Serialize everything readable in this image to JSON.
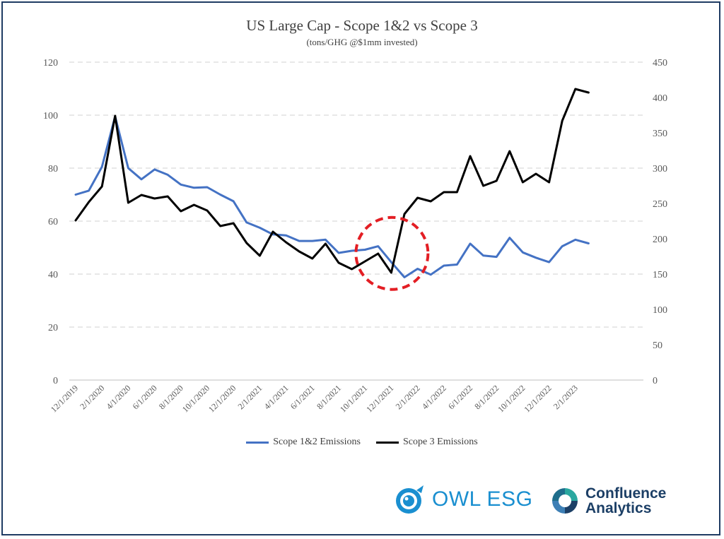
{
  "chart_data": {
    "type": "line",
    "title": "US Large Cap - Scope 1&2 vs Scope 3",
    "subtitle": "(tons/GHG @$1mm invested)",
    "x": [
      "12/1/2019",
      "1/1/2020",
      "2/1/2020",
      "3/1/2020",
      "4/1/2020",
      "5/1/2020",
      "6/1/2020",
      "7/1/2020",
      "8/1/2020",
      "9/1/2020",
      "10/1/2020",
      "11/1/2020",
      "12/1/2020",
      "1/1/2021",
      "2/1/2021",
      "3/1/2021",
      "4/1/2021",
      "5/1/2021",
      "6/1/2021",
      "7/1/2021",
      "8/1/2021",
      "9/1/2021",
      "10/1/2021",
      "11/1/2021",
      "12/1/2021",
      "1/1/2022",
      "2/1/2022",
      "3/1/2022",
      "4/1/2022",
      "5/1/2022",
      "6/1/2022",
      "7/1/2022",
      "8/1/2022",
      "9/1/2022",
      "10/1/2022",
      "11/1/2022",
      "12/1/2022",
      "1/1/2023",
      "2/1/2023",
      "3/1/2023"
    ],
    "x_tick_labels": [
      "12/1/2019",
      "2/1/2020",
      "4/1/2020",
      "6/1/2020",
      "8/1/2020",
      "10/1/2020",
      "12/1/2020",
      "2/1/2021",
      "4/1/2021",
      "6/1/2021",
      "8/1/2021",
      "10/1/2021",
      "12/1/2021",
      "2/1/2022",
      "4/1/2022",
      "6/1/2022",
      "8/1/2022",
      "10/1/2022",
      "12/1/2022",
      "2/1/2023"
    ],
    "y_left": {
      "ylim": [
        0,
        120
      ],
      "ticks": [
        "0",
        "20",
        "40",
        "60",
        "80",
        "100",
        "120"
      ]
    },
    "y_right": {
      "ylim": [
        0,
        450
      ],
      "ticks": [
        "0",
        "50",
        "100",
        "150",
        "200",
        "250",
        "300",
        "350",
        "400",
        "450"
      ]
    },
    "grid": "horizontal dashed",
    "legend_position": "bottom",
    "series": [
      {
        "name": "Scope 1&2 Emissions",
        "axis": "left",
        "color": "#4472C4",
        "values": [
          70,
          71.5,
          80.5,
          99.5,
          80,
          75.8,
          79.5,
          77.5,
          73.8,
          72.6,
          72.8,
          70,
          67.5,
          59.5,
          57.5,
          55,
          54.6,
          52.5,
          52.5,
          53,
          48,
          48.8,
          49.2,
          50.5,
          44.5,
          38.8,
          42,
          39.8,
          43.2,
          43.6,
          51.5,
          47,
          46.5,
          53.7,
          48.2,
          46.2,
          44.5,
          50.5,
          53,
          51.6
        ]
      },
      {
        "name": "Scope 3 Emissions",
        "axis": "right",
        "color": "#000000",
        "values": [
          226,
          252,
          274,
          374,
          251,
          262,
          257,
          260,
          239,
          248,
          240,
          218,
          222,
          194,
          176,
          210,
          195,
          182,
          172,
          193,
          166,
          157,
          168,
          179,
          152,
          235,
          258,
          253,
          266,
          266,
          317,
          275,
          282,
          324,
          280,
          292,
          280,
          367,
          412,
          407
        ]
      }
    ],
    "annotation": {
      "shape": "dashed-circle",
      "color": "#e31e24"
    }
  },
  "logos": {
    "owl": {
      "text": "OWL ESG",
      "color": "#1a8fd0"
    },
    "confluence": {
      "line1": "Confluence",
      "line2": "Analytics",
      "color": "#1c3f66"
    }
  }
}
